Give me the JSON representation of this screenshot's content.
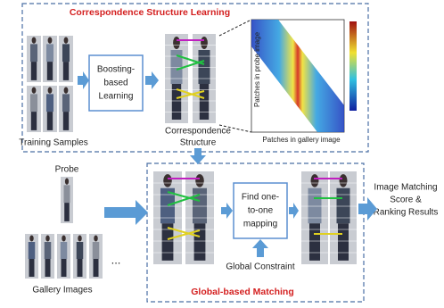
{
  "learning": {
    "title": "Correspondence Structure Learning",
    "training_label": "Training Samples",
    "boosting_lines": [
      "Boosting-",
      "based",
      "Learning"
    ],
    "structure_lines": [
      "Correspondence",
      "Structure"
    ],
    "heatmap_y_label": "Patches in probe image",
    "heatmap_x_label": "Patches in gallery image"
  },
  "matching": {
    "title": "Global-based Matching",
    "probe_label": "Probe",
    "gallery_label": "Gallery Images",
    "ellipsis": "...",
    "mapping_lines": [
      "Find one-",
      "to-one",
      "mapping"
    ],
    "constraint_label": "Global Constraint",
    "result_lines": [
      "Image Matching",
      "Score &",
      "Ranking Results"
    ]
  }
}
